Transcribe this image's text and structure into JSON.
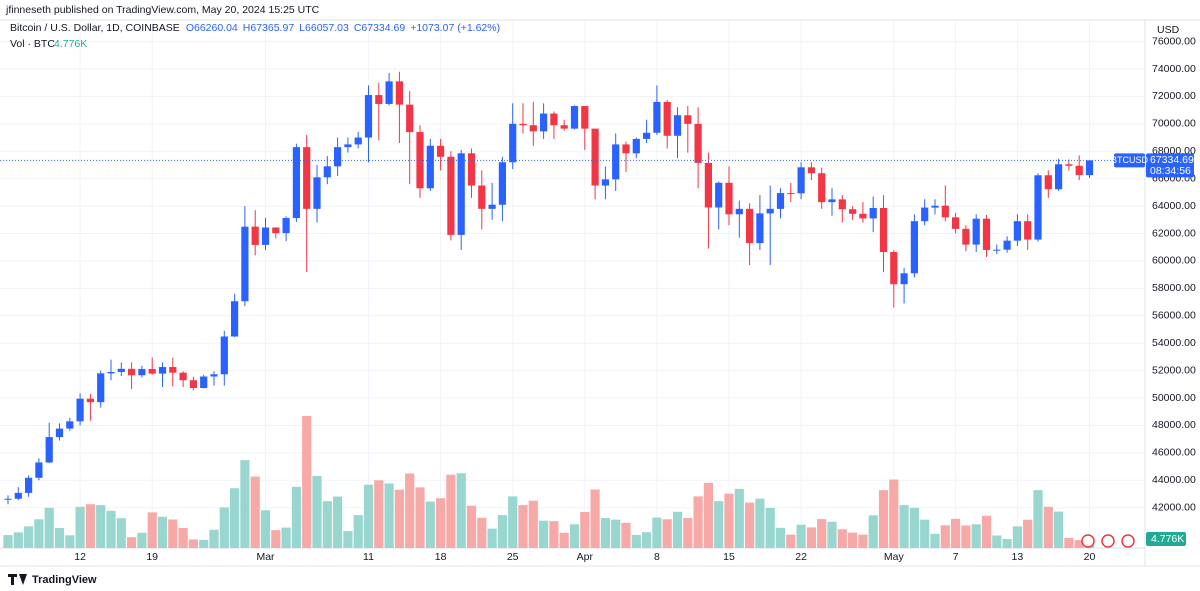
{
  "header": {
    "byline": "jfinneseth published on TradingView.com, May 20, 2024 15:25 UTC",
    "brand": "TradingView"
  },
  "chart_data": {
    "type": "candlestick",
    "title": "Bitcoin / U.S. Dollar, 1D, COINBASE",
    "ohlc_labels": [
      "O66260.04",
      "H67365.97",
      "L66057.03",
      "C67334.69",
      "+1073.07 (+1.62%)"
    ],
    "currency": "USD",
    "symbol_tag": "BTCUSD",
    "countdown": "08:34:56",
    "grid": true,
    "categories": [
      null,
      null,
      null,
      null,
      null,
      null,
      null,
      "12",
      null,
      null,
      null,
      null,
      null,
      null,
      "19",
      null,
      null,
      null,
      null,
      null,
      null,
      null,
      null,
      null,
      null,
      "Mar",
      null,
      null,
      null,
      null,
      null,
      null,
      null,
      null,
      null,
      "11",
      null,
      null,
      null,
      null,
      null,
      null,
      "18",
      null,
      null,
      null,
      null,
      null,
      null,
      "25",
      null,
      null,
      null,
      null,
      null,
      null,
      "Apr",
      null,
      null,
      null,
      null,
      null,
      null,
      "8",
      null,
      null,
      null,
      null,
      null,
      null,
      "15",
      null,
      null,
      null,
      null,
      null,
      null,
      "22",
      null,
      null,
      null,
      null,
      null,
      null,
      null,
      null,
      "May",
      null,
      null,
      null,
      null,
      null,
      "7",
      null,
      null,
      null,
      null,
      null,
      "13",
      null,
      null,
      null,
      null,
      null,
      null,
      "20"
    ],
    "series": [
      {
        "name": "BTCUSD",
        "up_color": "#2962ff",
        "down_color": "#f23645",
        "open": [
          42580,
          42650,
          43080,
          44180,
          45300,
          47150,
          47770,
          48300,
          49950,
          49700,
          51800,
          51900,
          52130,
          51660,
          52120,
          51780,
          52260,
          51850,
          51300,
          50730,
          51570,
          51730,
          54490,
          57060,
          62500,
          61170,
          62440,
          62030,
          63130,
          68300,
          63800,
          66100,
          66900,
          68300,
          68500,
          69000,
          72100,
          71450,
          73100,
          71400,
          69400,
          65300,
          68400,
          67600,
          61900,
          67850,
          65500,
          63800,
          64100,
          67200,
          70000,
          69900,
          69450,
          70750,
          69900,
          69650,
          71300,
          69650,
          65500,
          65950,
          68500,
          67850,
          68900,
          69350,
          71600,
          69130,
          70630,
          70000,
          67150,
          63900,
          65700,
          63400,
          63800,
          61300,
          63470,
          63800,
          64950,
          64930,
          66830,
          66400,
          64290,
          64490,
          63770,
          63440,
          63100,
          63860,
          60650,
          58300,
          59100,
          62900,
          63890,
          64030,
          63180,
          62340,
          61190,
          63080,
          60800,
          60820,
          61480,
          62900,
          61560,
          66250,
          65230,
          67050,
          66940,
          66260.04
        ],
        "high": [
          42900,
          43500,
          44350,
          45600,
          48200,
          48150,
          48550,
          50350,
          50300,
          52000,
          52800,
          52600,
          52600,
          52350,
          52950,
          52600,
          52950,
          51950,
          51550,
          51700,
          51950,
          54900,
          57600,
          64000,
          63700,
          63150,
          62450,
          63250,
          68550,
          69200,
          67000,
          67650,
          69000,
          69000,
          69400,
          72800,
          73000,
          73700,
          73800,
          72400,
          69900,
          68900,
          68900,
          68000,
          68100,
          68200,
          66600,
          65700,
          67600,
          71500,
          71500,
          71600,
          71500,
          70900,
          70300,
          71350,
          71300,
          69650,
          66900,
          69300,
          68700,
          69000,
          70300,
          72800,
          71750,
          71200,
          71300,
          71200,
          67900,
          65800,
          66900,
          64400,
          64200,
          64800,
          65500,
          65300,
          65700,
          67200,
          67200,
          66800,
          65300,
          64800,
          64000,
          64300,
          64700,
          64800,
          60800,
          59500,
          63400,
          64500,
          64500,
          65500,
          63500,
          62600,
          63400,
          63350,
          61200,
          61800,
          63400,
          63400,
          66400,
          66600,
          67450,
          67400,
          67700,
          67365.97
        ],
        "low": [
          42250,
          42550,
          42800,
          44000,
          45250,
          46900,
          47600,
          48000,
          48350,
          49300,
          51300,
          51600,
          50650,
          51500,
          51700,
          50800,
          50850,
          50800,
          50550,
          50700,
          50900,
          50900,
          54450,
          56700,
          60400,
          60800,
          61650,
          61450,
          62850,
          59200,
          62800,
          65600,
          66200,
          67900,
          68200,
          67200,
          68800,
          71350,
          68600,
          65600,
          64600,
          65100,
          66600,
          61500,
          60800,
          64600,
          62300,
          63000,
          62900,
          66700,
          69300,
          68400,
          68900,
          68900,
          69500,
          69600,
          68100,
          64500,
          64500,
          65100,
          66500,
          67500,
          68600,
          69200,
          68200,
          67500,
          67900,
          65300,
          60900,
          62300,
          62600,
          61700,
          59700,
          60800,
          59700,
          63100,
          64300,
          64500,
          65900,
          63800,
          63300,
          62800,
          63000,
          62800,
          62100,
          59200,
          56600,
          56900,
          58800,
          62600,
          63400,
          62900,
          62000,
          60700,
          60650,
          60300,
          60500,
          60600,
          61100,
          60800,
          61400,
          64600,
          65100,
          66600,
          65900,
          66057.03
        ],
        "close": [
          42650,
          43080,
          44180,
          45300,
          47150,
          47770,
          48300,
          49950,
          49700,
          51800,
          51900,
          52130,
          51660,
          52120,
          51780,
          52260,
          51850,
          51300,
          50730,
          51570,
          51730,
          54490,
          57060,
          62500,
          61170,
          62440,
          62030,
          63130,
          68300,
          63800,
          66100,
          66900,
          68300,
          68500,
          69000,
          72100,
          71450,
          73100,
          71400,
          69400,
          65300,
          68400,
          67600,
          61900,
          67850,
          65500,
          63800,
          64100,
          67200,
          70000,
          69900,
          69450,
          70750,
          69900,
          69650,
          71300,
          69650,
          65500,
          65950,
          68500,
          67850,
          68900,
          69350,
          71600,
          69130,
          70630,
          70000,
          67150,
          63900,
          65700,
          63400,
          63800,
          61300,
          63470,
          63800,
          64950,
          64930,
          66830,
          66400,
          64290,
          64490,
          63770,
          63440,
          63100,
          63860,
          60650,
          58300,
          59100,
          62900,
          63890,
          64030,
          63180,
          62340,
          61190,
          63080,
          60800,
          60820,
          61480,
          62900,
          61560,
          66250,
          65230,
          67050,
          66940,
          66260.04,
          67334.69
        ]
      }
    ],
    "volume": {
      "name": "Vol · BTC",
      "up_color": "#98d6cf",
      "down_color": "#f7a9a8",
      "last_label": "4.776K",
      "values": [
        6200,
        7500,
        10400,
        13800,
        19300,
        9600,
        6100,
        19800,
        21000,
        20600,
        17900,
        14300,
        5200,
        7300,
        17100,
        15000,
        13700,
        9600,
        4100,
        3900,
        8800,
        19500,
        28700,
        42200,
        34300,
        18100,
        8600,
        9800,
        29400,
        63400,
        34600,
        22500,
        24700,
        8100,
        15800,
        30400,
        32500,
        31000,
        28000,
        35800,
        29100,
        22300,
        23900,
        35200,
        35900,
        20300,
        14500,
        9300,
        15800,
        24800,
        20600,
        22700,
        13100,
        12900,
        7300,
        11400,
        17300,
        28100,
        14400,
        13600,
        12100,
        6300,
        7600,
        14600,
        13800,
        17400,
        14400,
        24800,
        31300,
        22500,
        26100,
        28400,
        21800,
        23700,
        19200,
        9700,
        6400,
        11200,
        9900,
        13900,
        12600,
        9000,
        7400,
        6400,
        15700,
        27800,
        32900,
        20600,
        19300,
        13600,
        6800,
        10900,
        14000,
        10800,
        11400,
        15500,
        6000,
        4300,
        10400,
        13600,
        27800,
        19800,
        17500,
        4900,
        3800,
        4776
      ]
    },
    "ylim": [
      39060,
      77575
    ],
    "yticks": [
      {
        "value": 42000,
        "label": "42000.00"
      },
      {
        "value": 44000,
        "label": "44000.00"
      },
      {
        "value": 46000,
        "label": "46000.00"
      },
      {
        "value": 48000,
        "label": "48000.00"
      },
      {
        "value": 50000,
        "label": "50000.00"
      },
      {
        "value": 52000,
        "label": "52000.00"
      },
      {
        "value": 54000,
        "label": "54000.00"
      },
      {
        "value": 56000,
        "label": "56000.00"
      },
      {
        "value": 58000,
        "label": "58000.00"
      },
      {
        "value": 60000,
        "label": "60000.00"
      },
      {
        "value": 62000,
        "label": "62000.00"
      },
      {
        "value": 64000,
        "label": "64000.00"
      },
      {
        "value": 66000,
        "label": "66000.00"
      },
      {
        "value": 68000,
        "label": "68000.00"
      },
      {
        "value": 70000,
        "label": "70000.00"
      },
      {
        "value": 72000,
        "label": "72000.00"
      },
      {
        "value": 74000,
        "label": "74000.00"
      },
      {
        "value": 76000,
        "label": "76000.00"
      }
    ]
  }
}
